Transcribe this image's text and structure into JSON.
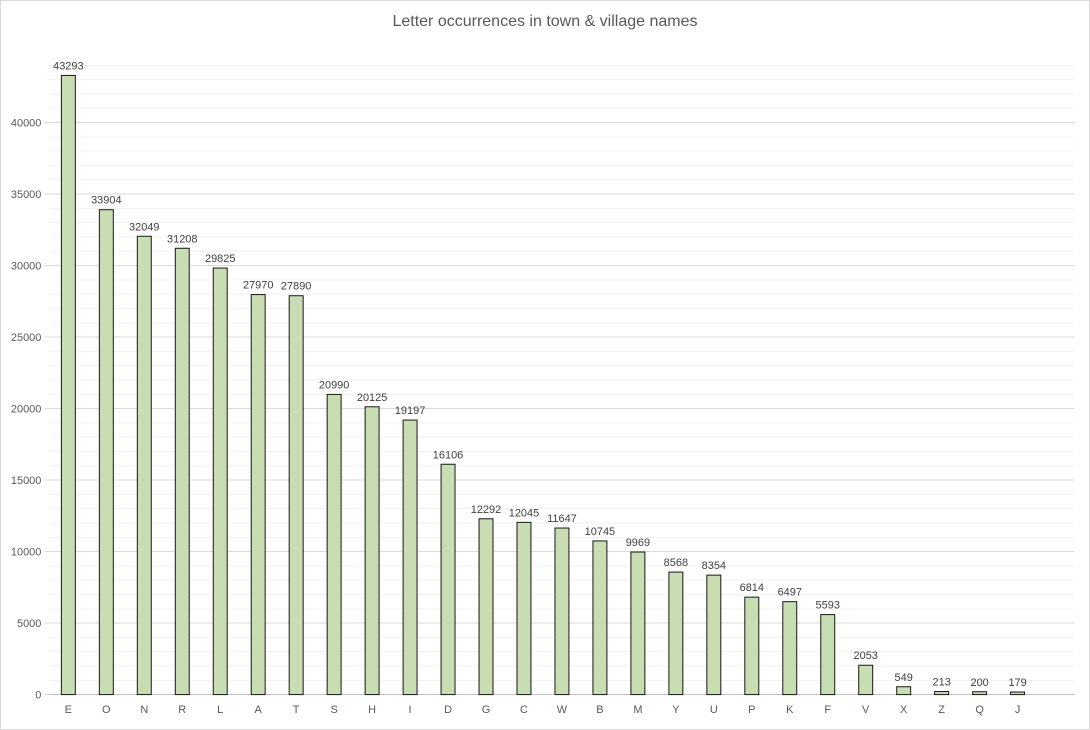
{
  "chart_data": {
    "type": "bar",
    "title": "Letter occurrences in town & village names",
    "categories": [
      "E",
      "O",
      "N",
      "R",
      "L",
      "A",
      "T",
      "S",
      "H",
      "I",
      "D",
      "G",
      "C",
      "W",
      "B",
      "M",
      "Y",
      "U",
      "P",
      "K",
      "F",
      "V",
      "X",
      "Z",
      "Q",
      "J"
    ],
    "values": [
      43293,
      33904,
      32049,
      31208,
      29825,
      27970,
      27890,
      20990,
      20125,
      19197,
      16106,
      12292,
      12045,
      11647,
      10745,
      9969,
      8568,
      8354,
      6814,
      6497,
      5593,
      2053,
      549,
      213,
      200,
      179
    ],
    "data_labels": [
      43293,
      33904,
      32049,
      31208,
      29825,
      27970,
      27890,
      20990,
      20125,
      19197,
      16106,
      12292,
      12045,
      11647,
      10745,
      9969,
      8568,
      8354,
      6814,
      6497,
      5593,
      2053,
      549,
      213,
      200,
      179
    ],
    "xlabel": "",
    "ylabel": "",
    "ylim": [
      0,
      44000
    ],
    "y_major_ticks": [
      0,
      5000,
      10000,
      15000,
      20000,
      25000,
      30000,
      35000,
      40000
    ],
    "y_minor_unit": 1000,
    "grid": true,
    "legend": "none",
    "colors": {
      "bar_fill": "#c8deb2",
      "bar_border": "#161616",
      "major_gridline": "#d9d9d9",
      "minor_gridline": "#f2f2f2",
      "axis_line": "#bfbfbf",
      "axis_label": "#595959",
      "data_label": "#404040",
      "title": "#595959",
      "chart_border": "#d9d9d9"
    }
  }
}
